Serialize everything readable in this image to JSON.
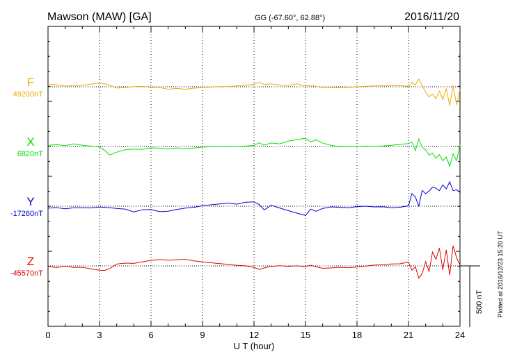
{
  "header": {
    "station": "Mawson (MAW)  [GA]",
    "coords": "GG (-67.60°,  62.88°)",
    "date": "2016/11/20"
  },
  "side_note": "Plotted at 2016/12/23 15:20 UT",
  "scale_bar": {
    "label": "500 nT",
    "value": 500
  },
  "colors": {
    "F": "#f0a800",
    "X": "#00e000",
    "Y": "#0000d0",
    "Z": "#e00000",
    "axis": "#000000"
  },
  "chart_data": {
    "type": "line",
    "xlabel": "U T (hour)",
    "xlim": [
      0,
      24
    ],
    "x_ticks": [
      "0",
      "3",
      "6",
      "9",
      "12",
      "15",
      "18",
      "21",
      "24"
    ],
    "grid": true,
    "y_unit": "nT",
    "series": [
      {
        "name": "F",
        "baseline": 49200,
        "baseline_label": "49200nT",
        "x": [
          0,
          0.5,
          1,
          1.5,
          2,
          2.5,
          3,
          3.3,
          3.6,
          4,
          4.5,
          5,
          5.5,
          6,
          6.5,
          7,
          7.5,
          8,
          8.5,
          9,
          9.5,
          10,
          10.5,
          11,
          11.5,
          12,
          12.3,
          12.6,
          13,
          13.5,
          14,
          14.5,
          15,
          15.3,
          15.6,
          16,
          16.5,
          17,
          17.5,
          18,
          18.5,
          19,
          19.5,
          20,
          20.5,
          21,
          21.2,
          21.4,
          21.6,
          21.8,
          22,
          22.2,
          22.4,
          22.6,
          22.8,
          23,
          23.2,
          23.4,
          23.6,
          23.8,
          24
        ],
        "values": [
          20,
          20,
          10,
          18,
          20,
          28,
          32,
          25,
          10,
          -15,
          -12,
          -5,
          -3,
          -10,
          -8,
          -20,
          -10,
          -15,
          -5,
          0,
          3,
          5,
          2,
          5,
          8,
          15,
          30,
          12,
          20,
          12,
          12,
          28,
          12,
          20,
          10,
          -2,
          -5,
          -8,
          -8,
          -5,
          -3,
          0,
          3,
          5,
          8,
          5,
          40,
          20,
          70,
          15,
          -40,
          -80,
          -60,
          -100,
          -40,
          -110,
          -20,
          -160,
          10,
          -150,
          -20
        ]
      },
      {
        "name": "X",
        "baseline": 6820,
        "baseline_label": "6820nT",
        "x": [
          0,
          0.5,
          1,
          1.5,
          2,
          2.5,
          3,
          3.3,
          3.6,
          4,
          4.5,
          5,
          5.5,
          6,
          6.5,
          7,
          7.5,
          8,
          8.5,
          9,
          9.5,
          10,
          10.5,
          11,
          11.5,
          12,
          12.3,
          12.6,
          13,
          13.5,
          14,
          14.5,
          15,
          15.3,
          15.6,
          16,
          16.5,
          17,
          17.5,
          18,
          18.5,
          19,
          19.5,
          20,
          20.5,
          21,
          21.2,
          21.4,
          21.6,
          21.8,
          22,
          22.2,
          22.4,
          22.6,
          22.8,
          23,
          23.2,
          23.4,
          23.6,
          23.8,
          24
        ],
        "values": [
          5,
          10,
          0,
          15,
          5,
          0,
          -5,
          -30,
          -65,
          -40,
          -20,
          -15,
          -20,
          -10,
          -15,
          -25,
          -18,
          -25,
          -20,
          -10,
          -5,
          0,
          0,
          5,
          10,
          15,
          35,
          15,
          30,
          20,
          40,
          50,
          60,
          30,
          50,
          25,
          10,
          0,
          5,
          5,
          10,
          5,
          8,
          10,
          15,
          20,
          30,
          -40,
          55,
          -10,
          -30,
          -70,
          -50,
          -90,
          -60,
          -110,
          -80,
          -160,
          -60,
          -120,
          10
        ]
      },
      {
        "name": "Y",
        "baseline": -17260,
        "baseline_label": "-17260nT",
        "x": [
          0,
          0.5,
          1,
          1.5,
          2,
          2.5,
          3,
          3.3,
          3.6,
          4,
          4.5,
          5,
          5.5,
          6,
          6.5,
          7,
          7.5,
          8,
          8.5,
          9,
          9.5,
          10,
          10.5,
          11,
          11.5,
          12,
          12.3,
          12.6,
          13,
          13.5,
          14,
          14.5,
          15,
          15.3,
          15.6,
          16,
          16.5,
          17,
          17.5,
          18,
          18.5,
          19,
          19.5,
          20,
          20.5,
          21,
          21.2,
          21.4,
          21.6,
          21.8,
          22,
          22.2,
          22.4,
          22.6,
          22.8,
          23,
          23.2,
          23.4,
          23.6,
          23.8,
          24
        ],
        "values": [
          -10,
          -5,
          -15,
          -8,
          -10,
          -15,
          -10,
          -15,
          -20,
          -25,
          -30,
          -50,
          -30,
          -25,
          -40,
          -35,
          -20,
          -10,
          -5,
          5,
          10,
          15,
          20,
          10,
          25,
          30,
          10,
          -30,
          10,
          -10,
          -30,
          -50,
          -70,
          -20,
          -40,
          -20,
          -10,
          -15,
          -20,
          -10,
          -5,
          -8,
          -5,
          -10,
          -3,
          10,
          110,
          80,
          5,
          130,
          100,
          120,
          150,
          140,
          120,
          170,
          140,
          200,
          130,
          140,
          120
        ]
      },
      {
        "name": "Z",
        "baseline": -45570,
        "baseline_label": "-45570nT",
        "x": [
          0,
          0.5,
          1,
          1.5,
          2,
          2.5,
          3,
          3.3,
          3.6,
          4,
          4.5,
          5,
          5.5,
          6,
          6.5,
          7,
          7.5,
          8,
          8.5,
          9,
          9.5,
          10,
          10.5,
          11,
          11.5,
          12,
          12.3,
          12.6,
          13,
          13.5,
          14,
          14.5,
          15,
          15.3,
          15.6,
          16,
          16.5,
          17,
          17.5,
          18,
          18.5,
          19,
          19.5,
          20,
          20.5,
          21,
          21.2,
          21.4,
          21.6,
          21.8,
          22,
          22.2,
          22.4,
          22.6,
          22.8,
          23,
          23.2,
          23.4,
          23.6,
          23.8,
          24
        ],
        "values": [
          -10,
          -20,
          -5,
          -15,
          -10,
          -20,
          -30,
          -30,
          -15,
          20,
          25,
          20,
          30,
          40,
          45,
          40,
          45,
          50,
          40,
          35,
          30,
          25,
          20,
          10,
          5,
          -10,
          -30,
          -20,
          -10,
          -5,
          -10,
          -5,
          -10,
          5,
          -5,
          -15,
          -10,
          -5,
          -10,
          -5,
          0,
          5,
          5,
          10,
          10,
          25,
          -40,
          -10,
          -100,
          -60,
          40,
          -40,
          120,
          60,
          150,
          -30,
          130,
          -80,
          160,
          60,
          0
        ]
      }
    ]
  }
}
